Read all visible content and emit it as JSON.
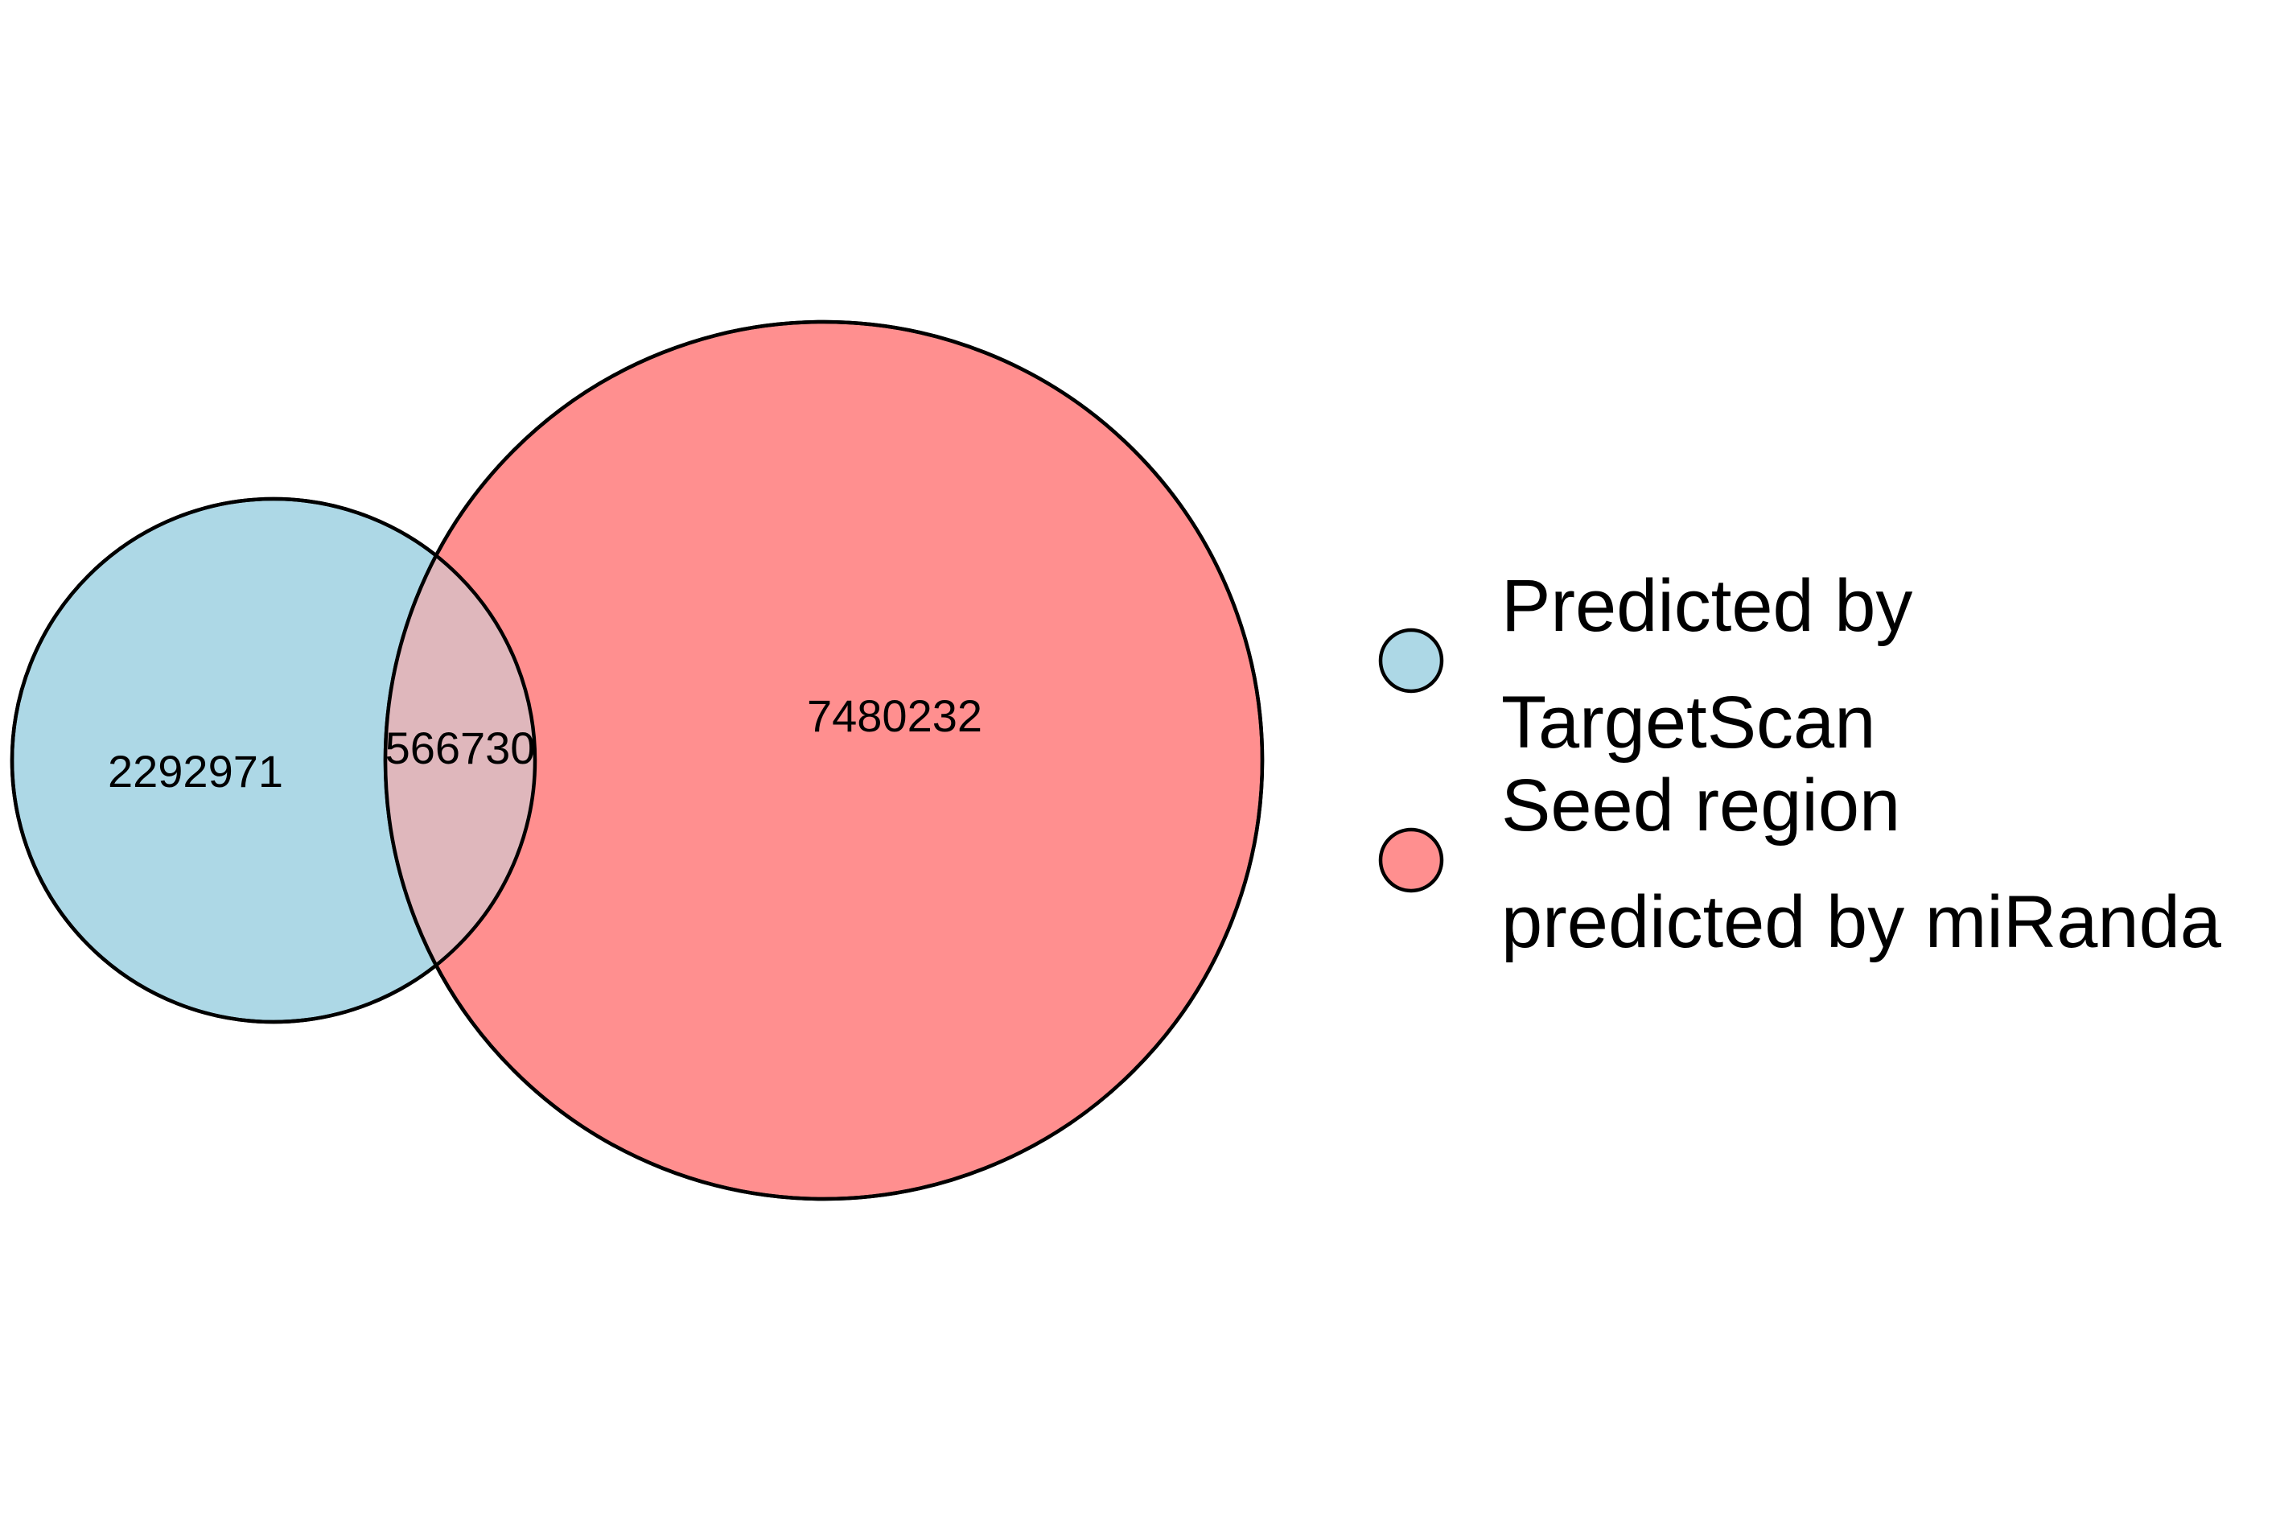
{
  "sets": [
    {
      "name": "Predicted by TargetScan",
      "color": "#ADD8E6"
    },
    {
      "name": "Seed region predicted by miRanda",
      "color": "#FF8F8F"
    }
  ],
  "overlap_color": "#DFB7BC",
  "outline_color": "#000000",
  "regions": {
    "targetscan_only": "2292971",
    "both": "566730",
    "miranda_only": "7480232"
  },
  "legend": {
    "items": [
      {
        "lines": [
          "Predicted by",
          "TargetScan"
        ],
        "color": "#ADD8E6",
        "icon": "circle-swatch"
      },
      {
        "lines": [
          "Seed region",
          "predicted by miRanda"
        ],
        "color": "#FF8F8F",
        "icon": "circle-swatch"
      }
    ]
  }
}
